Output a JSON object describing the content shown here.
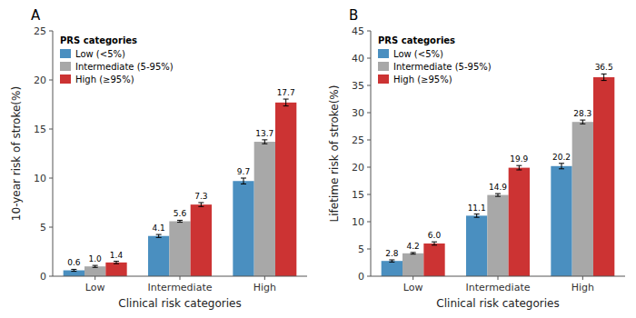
{
  "chart_data": [
    {
      "type": "bar",
      "title": "A",
      "xlabel": "Clinical risk categories",
      "ylabel": "10-year risk of stroke(%)",
      "categories": [
        "Low",
        "Intermediate",
        "High"
      ],
      "series": [
        {
          "name": "Low (<5%)",
          "color": "#4A8FC0",
          "values": [
            0.6,
            4.1,
            9.7
          ],
          "errors": [
            0.1,
            0.15,
            0.3
          ]
        },
        {
          "name": "Intermediate (5-95%)",
          "color": "#A8A8A8",
          "values": [
            1.0,
            5.6,
            13.7
          ],
          "errors": [
            0.1,
            0.1,
            0.2
          ],
          "value_labels": [
            "1.0",
            "5.6",
            "13.7"
          ]
        },
        {
          "name": "High (≥95%)",
          "color": "#CC3333",
          "values": [
            1.4,
            7.3,
            17.7
          ],
          "errors": [
            0.12,
            0.2,
            0.35
          ]
        }
      ],
      "ylim": [
        0,
        25
      ],
      "yticks": [
        0,
        5,
        10,
        15,
        20,
        25
      ],
      "grid": false,
      "legend": "upper left",
      "legend_title": "PRS categories",
      "data_labels": true
    },
    {
      "type": "bar",
      "title": "B",
      "xlabel": "Clinical risk categories",
      "ylabel": "Lifetime risk of stroke(%)",
      "categories": [
        "Low",
        "Intermediate",
        "High"
      ],
      "series": [
        {
          "name": "Low (<5%)",
          "color": "#4A8FC0",
          "values": [
            2.8,
            11.1,
            20.2
          ],
          "errors": [
            0.2,
            0.3,
            0.5
          ]
        },
        {
          "name": "Intermediate (5-95%)",
          "color": "#A8A8A8",
          "values": [
            4.2,
            14.9,
            28.3
          ],
          "errors": [
            0.15,
            0.25,
            0.35
          ]
        },
        {
          "name": "High (≥95%)",
          "color": "#CC3333",
          "values": [
            6.0,
            19.9,
            36.5
          ],
          "errors": [
            0.3,
            0.4,
            0.6
          ],
          "value_labels": [
            "6.0",
            "19.9",
            "36.5"
          ]
        }
      ],
      "ylim": [
        0,
        45
      ],
      "yticks": [
        0,
        5,
        10,
        15,
        20,
        25,
        30,
        35,
        40,
        45
      ],
      "grid": false,
      "legend": "upper left",
      "legend_title": "PRS categories",
      "data_labels": true
    }
  ]
}
